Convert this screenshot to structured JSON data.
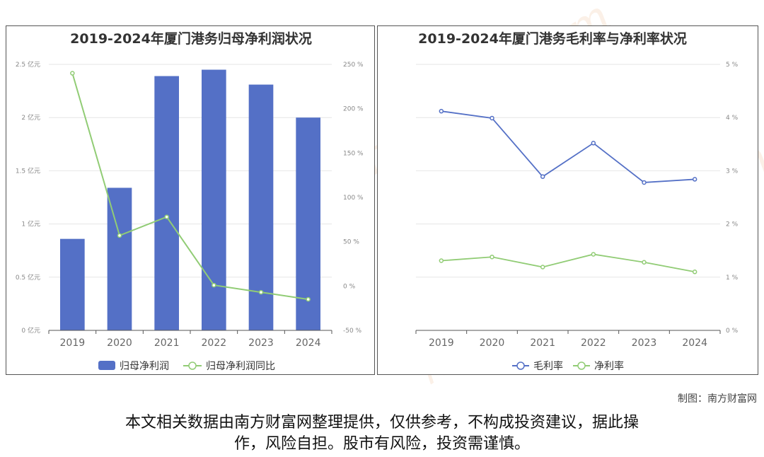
{
  "watermark": "南方财富网 southmoney.com",
  "credit": "制图：南方财富网",
  "disclaimer": {
    "line1": "本文相关数据由南方财富网整理提供，仅供参考，不构成投资建议，据此操",
    "line2": "作，风险自担。股市有风险，投资需谨慎。"
  },
  "colors": {
    "bar": "#5470c6",
    "green": "#91cc75",
    "blue": "#5470c6",
    "grid": "#e6e6e6",
    "axis": "#555555"
  },
  "chart_data": [
    {
      "type": "bar",
      "title": "2019-2024年厦门港务归母净利润状况",
      "categories": [
        "2019",
        "2020",
        "2021",
        "2022",
        "2023",
        "2024"
      ],
      "series": [
        {
          "name": "归母净利润",
          "type": "bar",
          "axis": "left",
          "values": [
            0.86,
            1.34,
            2.39,
            2.45,
            2.31,
            2.0
          ]
        },
        {
          "name": "归母净利润同比",
          "type": "line",
          "axis": "right",
          "values": [
            240,
            57,
            78,
            1,
            -7,
            -15
          ]
        }
      ],
      "left_axis": {
        "ylim": [
          0,
          2.5
        ],
        "ticks": [
          "0 亿元",
          "0.5 亿元",
          "1 亿元",
          "1.5 亿元",
          "2 亿元",
          "2.5 亿元"
        ]
      },
      "right_axis": {
        "ylim": [
          -50,
          250
        ],
        "ticks": [
          "-50 %",
          "0 %",
          "50 %",
          "100 %",
          "150 %",
          "200 %",
          "250 %"
        ]
      },
      "legend": "bottom-center",
      "grid": true
    },
    {
      "type": "line",
      "title": "2019-2024年厦门港务毛利率与净利率状况",
      "categories": [
        "2019",
        "2020",
        "2021",
        "2022",
        "2023",
        "2024"
      ],
      "series": [
        {
          "name": "毛利率",
          "values": [
            4.12,
            3.99,
            2.89,
            3.52,
            2.78,
            2.84
          ]
        },
        {
          "name": "净利率",
          "values": [
            1.31,
            1.38,
            1.19,
            1.43,
            1.28,
            1.1
          ]
        }
      ],
      "right_axis": {
        "ylim": [
          0,
          5
        ],
        "ticks": [
          "0 %",
          "1 %",
          "2 %",
          "3 %",
          "4 %",
          "5 %"
        ]
      },
      "legend": "bottom-center",
      "grid": true
    }
  ]
}
